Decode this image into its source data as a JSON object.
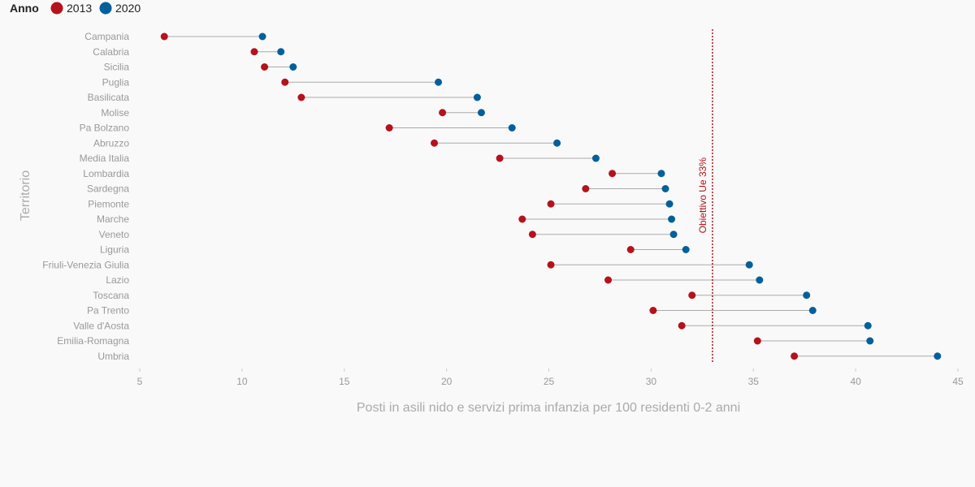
{
  "legend": {
    "title": "Anno",
    "items": [
      {
        "label": "2013",
        "color": "#b5121b"
      },
      {
        "label": "2020",
        "color": "#00609c"
      }
    ]
  },
  "chart_data": {
    "type": "dumbbell",
    "xlabel": "Posti in asili nido e servizi prima infanzia per 100 residenti 0-2 anni",
    "ylabel": "Territorio",
    "xlim": [
      5,
      45
    ],
    "xticks": [
      5,
      10,
      15,
      20,
      25,
      30,
      35,
      40,
      45
    ],
    "grid": false,
    "legend_position": "top-left",
    "categories": [
      "Campania",
      "Calabria",
      "Sicilia",
      "Puglia",
      "Basilicata",
      "Molise",
      "Pa Bolzano",
      "Abruzzo",
      "Media Italia",
      "Lombardia",
      "Sardegna",
      "Piemonte",
      "Marche",
      "Veneto",
      "Liguria",
      "Friuli-Venezia Giulia",
      "Lazio",
      "Toscana",
      "Pa Trento",
      "Valle d'Aosta",
      "Emilia-Romagna",
      "Umbria"
    ],
    "series": [
      {
        "name": "2013",
        "color": "#b5121b",
        "values": [
          6.2,
          10.6,
          11.1,
          12.1,
          12.9,
          19.8,
          17.2,
          19.4,
          22.6,
          28.1,
          26.8,
          25.1,
          23.7,
          24.2,
          29.0,
          25.1,
          27.9,
          32.0,
          30.1,
          31.5,
          35.2,
          37.0
        ]
      },
      {
        "name": "2020",
        "color": "#00609c",
        "values": [
          11.0,
          11.9,
          12.5,
          19.6,
          21.5,
          21.7,
          23.2,
          25.4,
          27.3,
          30.5,
          30.7,
          30.9,
          31.0,
          31.1,
          31.7,
          34.8,
          35.3,
          37.6,
          37.9,
          40.6,
          40.7,
          44.0
        ]
      }
    ],
    "reference_line": {
      "value": 33,
      "label": "Obiettivo Ue 33%",
      "color": "#b5121b"
    }
  }
}
